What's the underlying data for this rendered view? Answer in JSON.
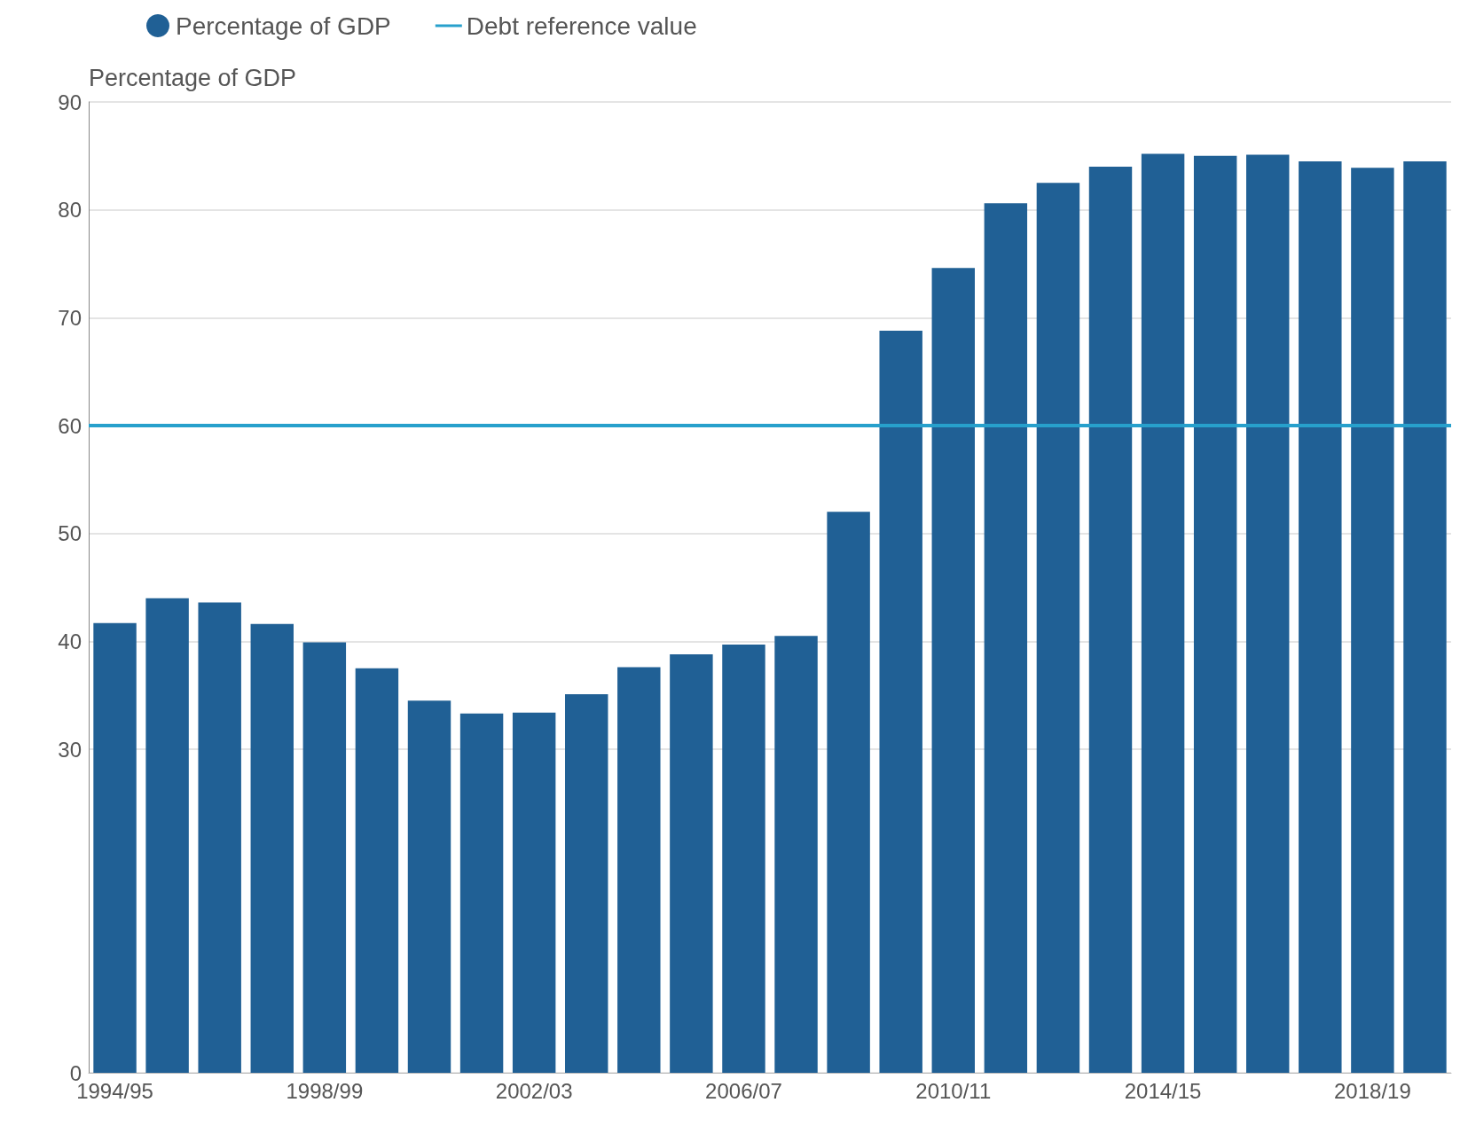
{
  "chart_data": {
    "type": "bar",
    "categories": [
      "1994/95",
      null,
      null,
      null,
      "1998/99",
      null,
      null,
      null,
      "2002/03",
      null,
      null,
      null,
      "2006/07",
      null,
      null,
      null,
      "2010/11",
      null,
      null,
      null,
      "2014/15",
      null,
      null,
      null,
      "2018/19",
      null
    ],
    "series": [
      {
        "name": "Percentage of GDP",
        "color": "#206095",
        "values": [
          41.7,
          44.0,
          43.6,
          41.6,
          39.9,
          37.5,
          34.5,
          33.3,
          33.4,
          35.1,
          37.6,
          38.8,
          39.7,
          40.5,
          52.0,
          68.8,
          74.6,
          80.6,
          82.5,
          84.0,
          85.2,
          85.0,
          85.1,
          84.5,
          83.9,
          84.5
        ]
      }
    ],
    "ylabel": "Percentage of GDP",
    "ylim": [
      0,
      90
    ],
    "yticks": [
      0,
      30,
      40,
      50,
      60,
      70,
      80,
      90
    ],
    "ref_lines": [
      {
        "axis": "y",
        "value": 60,
        "label": "Debt reference value",
        "color": "#27a0cc"
      }
    ],
    "grid": "y",
    "legend": "top left"
  }
}
